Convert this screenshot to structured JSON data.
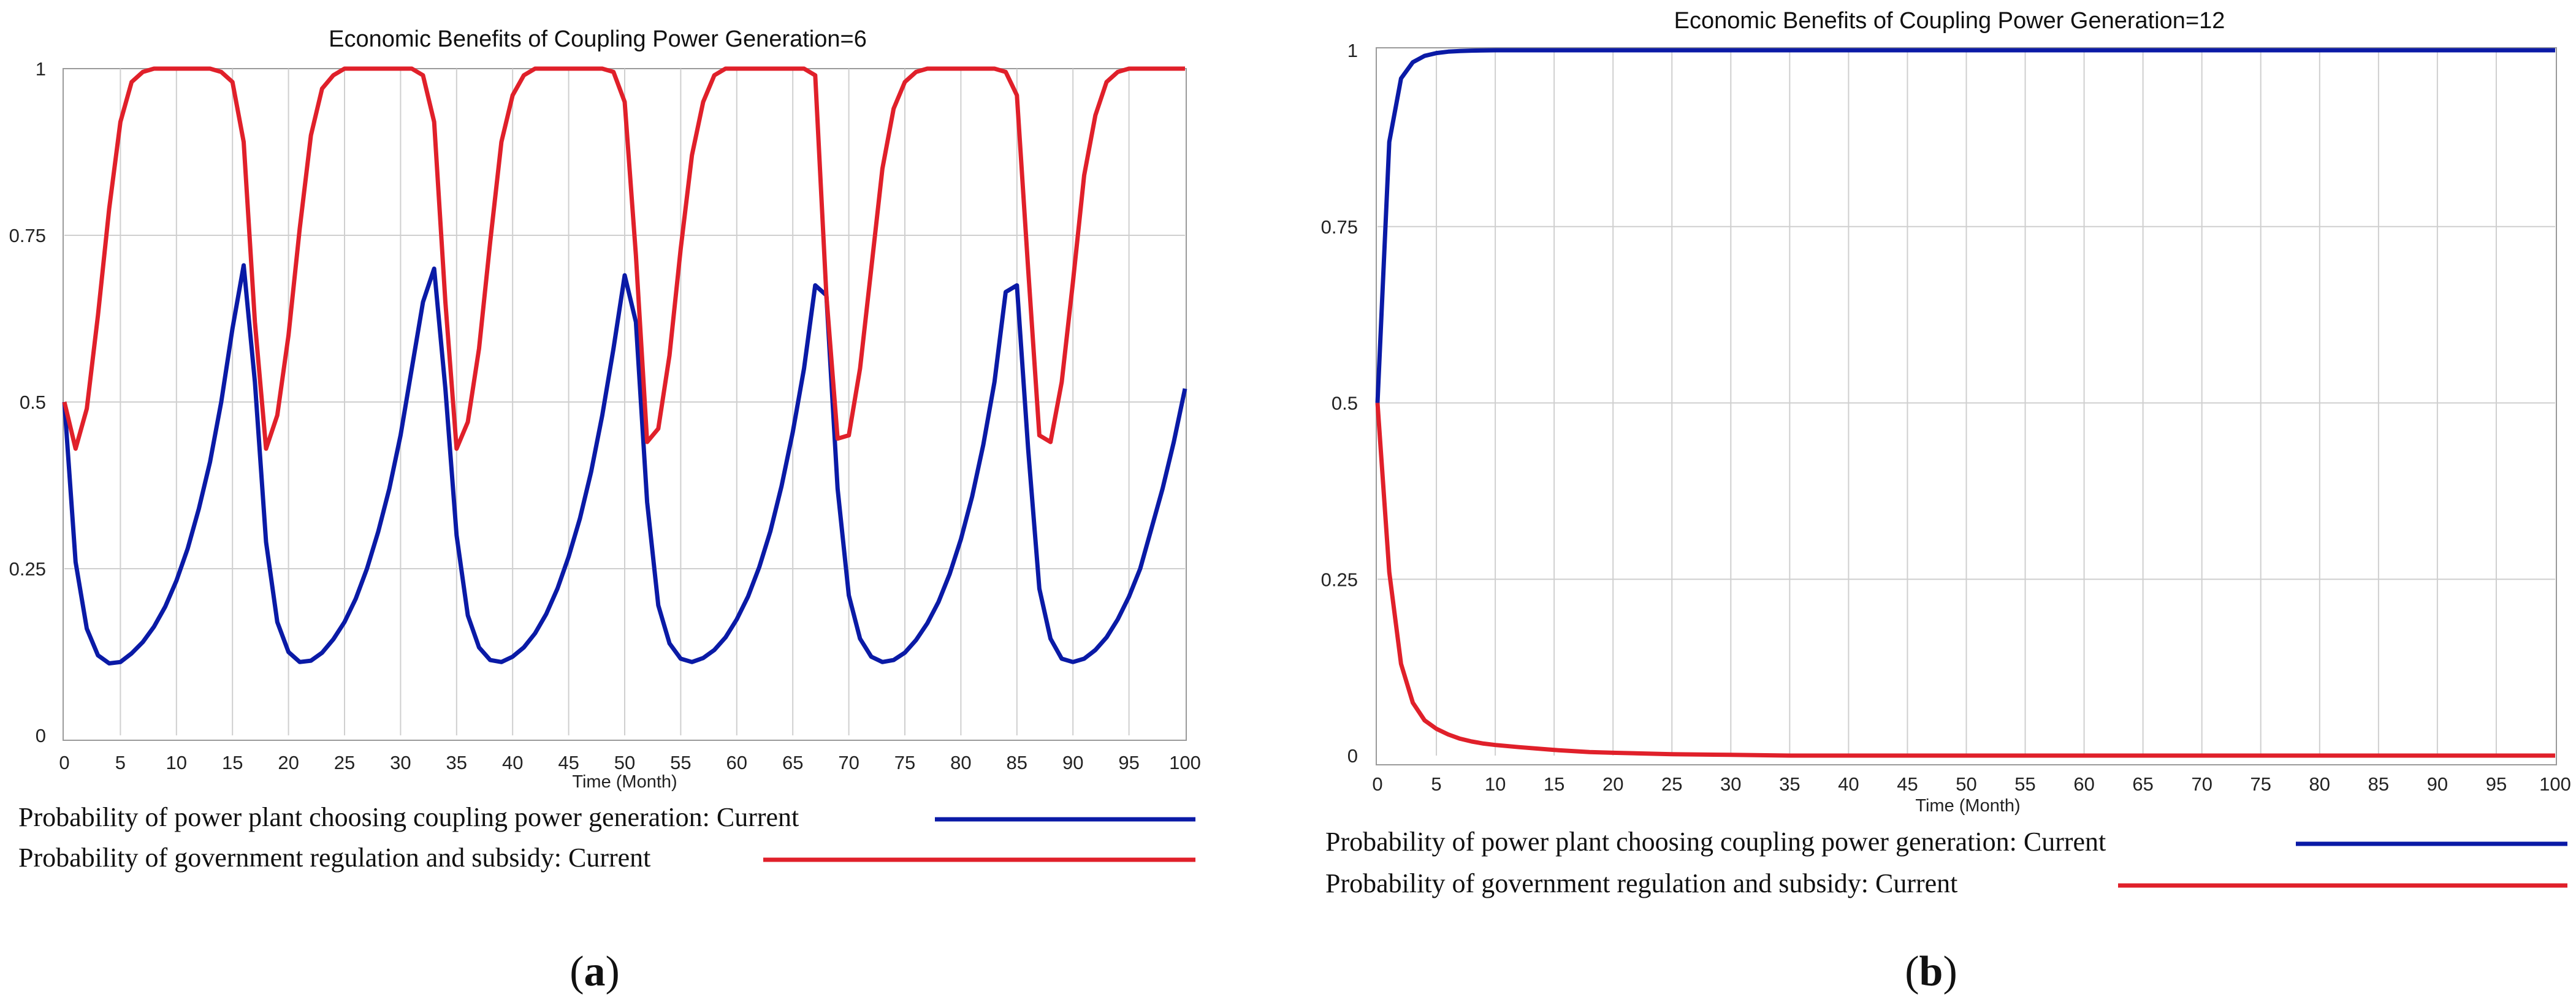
{
  "colors": {
    "series_blue": "#0a1aa6",
    "series_red": "#e0202a"
  },
  "chart_data": [
    {
      "type": "line",
      "panel_label": {
        "open": "(",
        "letter": "a",
        "close": ")"
      },
      "title": "Economic Benefits of Coupling Power Generation=6",
      "xlabel": "Time (Month)",
      "ylabel": "",
      "xlim": [
        0,
        100
      ],
      "ylim": [
        0,
        1
      ],
      "xticks": [
        0,
        5,
        10,
        15,
        20,
        25,
        30,
        35,
        40,
        45,
        50,
        55,
        60,
        65,
        70,
        75,
        80,
        85,
        90,
        95,
        100
      ],
      "yticks": [
        0,
        0.25,
        0.5,
        0.75,
        1
      ],
      "ytick_labels": [
        "0",
        "0.25",
        "0.5",
        "0.75",
        "1"
      ],
      "series": [
        {
          "name": "Probability of power plant choosing coupling power generation: Current",
          "color": "#0a1aa6",
          "x": [
            0,
            1,
            2,
            3,
            4,
            5,
            6,
            7,
            8,
            9,
            10,
            11,
            12,
            13,
            14,
            15,
            16,
            17,
            18,
            19,
            20,
            21,
            22,
            23,
            24,
            25,
            26,
            27,
            28,
            29,
            30,
            31,
            32,
            33,
            34,
            35,
            36,
            37,
            38,
            39,
            40,
            41,
            42,
            43,
            44,
            45,
            46,
            47,
            48,
            49,
            50,
            51,
            52,
            53,
            54,
            55,
            56,
            57,
            58,
            59,
            60,
            61,
            62,
            63,
            64,
            65,
            66,
            67,
            68,
            69,
            70,
            71,
            72,
            73,
            74,
            75,
            76,
            77,
            78,
            79,
            80,
            81,
            82,
            83,
            84,
            85,
            86,
            87,
            88,
            89,
            90,
            91,
            92,
            93,
            94,
            95,
            96,
            97,
            98,
            99,
            100
          ],
          "y": [
            0.5,
            0.26,
            0.16,
            0.12,
            0.108,
            0.11,
            0.123,
            0.14,
            0.163,
            0.193,
            0.232,
            0.28,
            0.34,
            0.41,
            0.5,
            0.61,
            0.705,
            0.53,
            0.29,
            0.17,
            0.125,
            0.11,
            0.112,
            0.124,
            0.144,
            0.17,
            0.205,
            0.25,
            0.305,
            0.37,
            0.45,
            0.55,
            0.65,
            0.7,
            0.52,
            0.3,
            0.18,
            0.132,
            0.113,
            0.11,
            0.118,
            0.132,
            0.153,
            0.182,
            0.22,
            0.268,
            0.325,
            0.395,
            0.48,
            0.58,
            0.69,
            0.62,
            0.35,
            0.195,
            0.138,
            0.115,
            0.11,
            0.116,
            0.128,
            0.147,
            0.174,
            0.208,
            0.252,
            0.306,
            0.374,
            0.455,
            0.55,
            0.675,
            0.66,
            0.37,
            0.21,
            0.145,
            0.118,
            0.11,
            0.113,
            0.124,
            0.143,
            0.168,
            0.2,
            0.242,
            0.294,
            0.358,
            0.436,
            0.53,
            0.665,
            0.675,
            0.43,
            0.22,
            0.145,
            0.115,
            0.11,
            0.115,
            0.128,
            0.147,
            0.174,
            0.208,
            0.25,
            0.31,
            0.37,
            0.44,
            0.52
          ]
        },
        {
          "name": "Probability of government regulation and subsidy: Current",
          "color": "#e0202a",
          "x": [
            0,
            1,
            2,
            3,
            4,
            5,
            6,
            7,
            8,
            9,
            10,
            11,
            12,
            13,
            14,
            15,
            16,
            17,
            18,
            19,
            20,
            21,
            22,
            23,
            24,
            25,
            26,
            27,
            28,
            29,
            30,
            31,
            32,
            33,
            34,
            35,
            36,
            37,
            38,
            39,
            40,
            41,
            42,
            43,
            44,
            45,
            46,
            47,
            48,
            49,
            50,
            51,
            52,
            53,
            54,
            55,
            56,
            57,
            58,
            59,
            60,
            61,
            62,
            63,
            64,
            65,
            66,
            67,
            68,
            69,
            70,
            71,
            72,
            73,
            74,
            75,
            76,
            77,
            78,
            79,
            80,
            81,
            82,
            83,
            84,
            85,
            86,
            87,
            88,
            89,
            90,
            91,
            92,
            93,
            94,
            95,
            96,
            97,
            98,
            99,
            100
          ],
          "y": [
            0.5,
            0.43,
            0.49,
            0.63,
            0.79,
            0.92,
            0.98,
            0.995,
            1,
            1,
            1,
            1,
            1,
            1,
            0.995,
            0.98,
            0.89,
            0.62,
            0.43,
            0.48,
            0.6,
            0.76,
            0.9,
            0.97,
            0.99,
            1,
            1,
            1,
            1,
            1,
            1,
            1,
            0.99,
            0.92,
            0.65,
            0.43,
            0.47,
            0.58,
            0.74,
            0.89,
            0.96,
            0.99,
            1,
            1,
            1,
            1,
            1,
            1,
            1,
            0.995,
            0.95,
            0.72,
            0.44,
            0.46,
            0.57,
            0.73,
            0.87,
            0.95,
            0.99,
            1,
            1,
            1,
            1,
            1,
            1,
            1,
            1,
            0.99,
            0.66,
            0.445,
            0.45,
            0.55,
            0.7,
            0.85,
            0.94,
            0.98,
            0.995,
            1,
            1,
            1,
            1,
            1,
            1,
            1,
            0.995,
            0.96,
            0.7,
            0.45,
            0.44,
            0.53,
            0.68,
            0.84,
            0.93,
            0.98,
            0.995,
            1,
            1,
            1,
            1,
            1,
            1
          ]
        }
      ]
    },
    {
      "type": "line",
      "panel_label": {
        "open": "(",
        "letter": "b",
        "close": ")"
      },
      "title": "Economic Benefits of Coupling Power Generation=12",
      "xlabel": "Time (Month)",
      "ylabel": "",
      "xlim": [
        0,
        100
      ],
      "ylim": [
        0,
        1
      ],
      "xticks": [
        0,
        5,
        10,
        15,
        20,
        25,
        30,
        35,
        40,
        45,
        50,
        55,
        60,
        65,
        70,
        75,
        80,
        85,
        90,
        95,
        100
      ],
      "yticks": [
        0,
        0.25,
        0.5,
        0.75,
        1
      ],
      "ytick_labels": [
        "0",
        "0.25",
        "0.5",
        "0.75",
        "1"
      ],
      "series": [
        {
          "name": "Probability of power plant choosing coupling power generation: Current",
          "color": "#0a1aa6",
          "x": [
            0,
            1,
            2,
            3,
            4,
            5,
            6,
            7,
            8,
            10,
            12,
            15,
            20,
            25,
            30,
            35,
            40,
            50,
            60,
            70,
            80,
            90,
            100
          ],
          "y": [
            0.5,
            0.87,
            0.96,
            0.983,
            0.992,
            0.996,
            0.998,
            0.999,
            0.9995,
            1,
            1,
            1,
            1,
            1,
            1,
            1,
            1,
            1,
            1,
            1,
            1,
            1,
            1
          ]
        },
        {
          "name": "Probability of government regulation and subsidy: Current",
          "color": "#e0202a",
          "x": [
            0,
            1,
            2,
            3,
            4,
            5,
            6,
            7,
            8,
            9,
            10,
            12,
            15,
            18,
            20,
            25,
            30,
            35,
            40,
            50,
            60,
            70,
            80,
            90,
            100
          ],
          "y": [
            0.5,
            0.26,
            0.13,
            0.075,
            0.05,
            0.038,
            0.03,
            0.024,
            0.02,
            0.017,
            0.015,
            0.012,
            0.008,
            0.005,
            0.004,
            0.002,
            0.001,
            0,
            0,
            0,
            0,
            0,
            0,
            0,
            0
          ]
        }
      ]
    }
  ]
}
